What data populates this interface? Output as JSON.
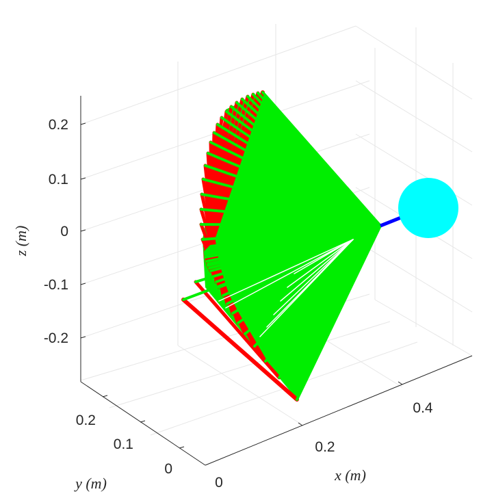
{
  "chart_data": {
    "type": "3d-line",
    "title": "",
    "xlabel": "x (m)",
    "ylabel": "y (m)",
    "zlabel": "z (m)",
    "x_ticks": [
      "0",
      "0.2",
      "0.4"
    ],
    "y_ticks": [
      "0",
      "0.1",
      "0.2"
    ],
    "z_ticks": [
      "0.2",
      "0.1",
      "0",
      "-0.1",
      "-0.2"
    ],
    "grid": true,
    "colors": {
      "arm_upper": "#ff0000",
      "arm_lower": "#00ee00",
      "tool": "#0000ff",
      "target": "#00ffff"
    },
    "series": [
      {
        "color": "#ff0000"
      },
      {
        "color": "#00ee00"
      },
      {
        "color": "#0000ff"
      },
      {
        "color": "#00ffff"
      }
    ]
  }
}
